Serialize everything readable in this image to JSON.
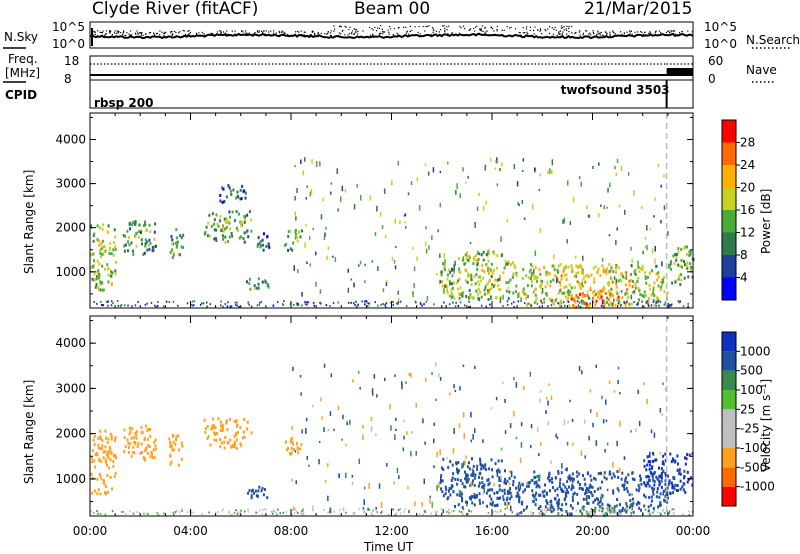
{
  "header": {
    "station": "Clyde River (fitACF)",
    "beam": "Beam 00",
    "date": "21/Mar/2015"
  },
  "top_panels": {
    "nsky_label": "N.Sky",
    "nsky_ticks": [
      "10^5",
      "10^0"
    ],
    "nsearch_label": "N.Search",
    "nsearch_ticks": [
      "10^5",
      "10^0"
    ],
    "freq_label_line1": "Freq.",
    "freq_label_line2": "[MHz]",
    "freq_ticks": [
      "18",
      "8"
    ],
    "nave_label": "Nave",
    "nave_ticks": [
      "60",
      "0"
    ],
    "cpid_label": "CPID",
    "cpid_programs": [
      {
        "name": "rbsp 200",
        "start_hour": 0
      },
      {
        "name": "twofsound 3503",
        "start_hour": 22.95
      }
    ]
  },
  "colors": {
    "power_scale": [
      "#0000ff",
      "#1f3f9c",
      "#2f7a4a",
      "#4aaa3a",
      "#c8d020",
      "#ffb000",
      "#ff6a00",
      "#ff0000"
    ],
    "velocity_scale": [
      "#ff0000",
      "#ff6a00",
      "#ffa020",
      "#c0c0c0",
      "#c0c0c0",
      "#50c030",
      "#3a8a50",
      "#2050a0",
      "#1030c0"
    ]
  },
  "chart_data": [
    {
      "type": "heatmap",
      "panel": "power",
      "xlabel": "",
      "ylabel": "Slant Range [km]",
      "x_unit": "hours UT",
      "xlim": [
        0,
        24
      ],
      "ylim": [
        180,
        4600
      ],
      "yticks": [
        "1000",
        "2000",
        "3000",
        "4000"
      ],
      "colorbar": {
        "label": "Power [dB]",
        "range": [
          0,
          32
        ],
        "ticks": [
          "4",
          "8",
          "12",
          "16",
          "20",
          "24",
          "28"
        ]
      },
      "echo_regions": [
        {
          "x0": 0.0,
          "x1": 1.0,
          "y0": 600,
          "y1": 2100,
          "value": 18
        },
        {
          "x0": 1.3,
          "x1": 2.6,
          "y0": 1400,
          "y1": 2200,
          "value": 13
        },
        {
          "x0": 3.1,
          "x1": 3.7,
          "y0": 1300,
          "y1": 2000,
          "value": 14
        },
        {
          "x0": 4.5,
          "x1": 6.4,
          "y0": 1700,
          "y1": 2400,
          "value": 15
        },
        {
          "x0": 6.6,
          "x1": 7.1,
          "y0": 1500,
          "y1": 1900,
          "value": 10
        },
        {
          "x0": 7.7,
          "x1": 8.4,
          "y0": 1500,
          "y1": 2000,
          "value": 15
        },
        {
          "x0": 5.1,
          "x1": 6.2,
          "y0": 2600,
          "y1": 3000,
          "value": 9
        },
        {
          "x0": 6.2,
          "x1": 7.1,
          "y0": 600,
          "y1": 900,
          "value": 12
        },
        {
          "x0": 13.9,
          "x1": 16.9,
          "y0": 400,
          "y1": 1500,
          "value": 17
        },
        {
          "x0": 16.9,
          "x1": 23.0,
          "y0": 250,
          "y1": 1200,
          "value": 20
        },
        {
          "x0": 19.0,
          "x1": 21.0,
          "y0": 200,
          "y1": 600,
          "value": 26
        },
        {
          "x0": 23.0,
          "x1": 24.0,
          "y0": 700,
          "y1": 1600,
          "value": 16
        }
      ]
    },
    {
      "type": "heatmap",
      "panel": "velocity",
      "xlabel": "Time UT",
      "ylabel": "Slant Range [km]",
      "x_unit": "hours UT",
      "xlim": [
        0,
        24
      ],
      "ylim": [
        180,
        4600
      ],
      "xticks": [
        "00:00",
        "04:00",
        "08:00",
        "12:00",
        "16:00",
        "20:00",
        "00:00"
      ],
      "yticks": [
        "1000",
        "2000",
        "3000",
        "4000"
      ],
      "colorbar": {
        "label": "Velocity [m s⁻¹]",
        "ticks": [
          "-1000",
          "-500",
          "-100",
          "-25",
          "25",
          "100",
          "500",
          "1000"
        ]
      },
      "echo_regions": [
        {
          "x0": 0.0,
          "x1": 1.0,
          "y0": 600,
          "y1": 2100,
          "value": -300
        },
        {
          "x0": 1.3,
          "x1": 2.6,
          "y0": 1400,
          "y1": 2200,
          "value": -200
        },
        {
          "x0": 3.1,
          "x1": 3.7,
          "y0": 1300,
          "y1": 2000,
          "value": -200
        },
        {
          "x0": 4.5,
          "x1": 6.4,
          "y0": 1700,
          "y1": 2400,
          "value": -250
        },
        {
          "x0": 7.7,
          "x1": 8.4,
          "y0": 1500,
          "y1": 2000,
          "value": -250
        },
        {
          "x0": 6.2,
          "x1": 7.1,
          "y0": 600,
          "y1": 900,
          "value": 200
        },
        {
          "x0": 13.9,
          "x1": 16.9,
          "y0": 400,
          "y1": 1500,
          "value": 250
        },
        {
          "x0": 16.9,
          "x1": 23.0,
          "y0": 250,
          "y1": 1200,
          "value": 300
        },
        {
          "x0": 19.5,
          "x1": 21.5,
          "y0": 200,
          "y1": 450,
          "value": 0
        },
        {
          "x0": 22.0,
          "x1": 24.0,
          "y0": 700,
          "y1": 1600,
          "value": 700
        }
      ]
    }
  ]
}
